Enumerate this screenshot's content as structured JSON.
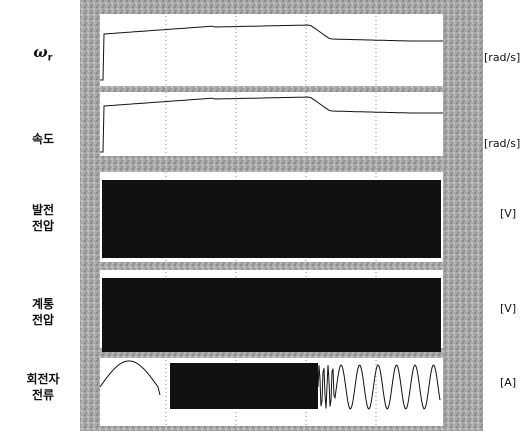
{
  "channels": [
    {
      "id": "omega",
      "label_symbol": "ω",
      "label_sub": "r",
      "unit": "[rad/s]",
      "kind": "speed"
    },
    {
      "id": "speed",
      "label_lines": [
        "속도"
      ],
      "unit": "[rad/s]",
      "kind": "speed"
    },
    {
      "id": "gen_voltage",
      "label_lines": [
        "발전",
        "전압"
      ],
      "unit": "[V]",
      "kind": "ac"
    },
    {
      "id": "grid_voltage",
      "label_lines": [
        "계통",
        "전압"
      ],
      "unit": "[V]",
      "kind": "ac"
    },
    {
      "id": "rotor_current",
      "label_lines": [
        "회전자",
        "전류"
      ],
      "unit": "[A]",
      "kind": "rotor"
    }
  ],
  "colors": {
    "trace": "#111111",
    "grid": "#8a8a8a",
    "band": "#9a9a9a",
    "background": "#ffffff"
  }
}
